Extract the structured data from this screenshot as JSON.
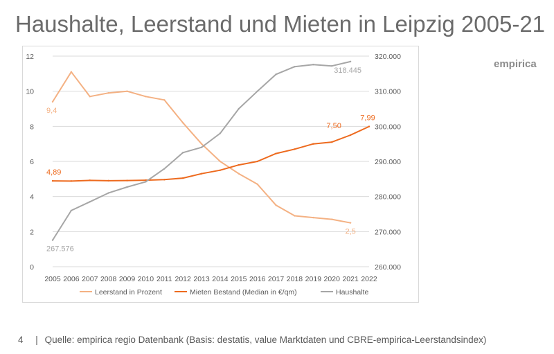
{
  "slide": {
    "title": "Haushalte, Leerstand und Mieten in Leipzig 2005-21",
    "brand": "empirica",
    "page_number": "4",
    "separator": "|",
    "source": "Quelle: empirica regio Datenbank (Basis: destatis, value Marktdaten und CBRE-empirica-Leerstandsindex)"
  },
  "chart_data": {
    "type": "line",
    "title": "Haushalte, Leerstand und Mieten in Leipzig 2005-21",
    "categories": [
      "2005",
      "2006",
      "2007",
      "2008",
      "2009",
      "2010",
      "2011",
      "2012",
      "2013",
      "2014",
      "2015",
      "2016",
      "2017",
      "2018",
      "2019",
      "2020",
      "2021",
      "2022"
    ],
    "y_left": {
      "min": 0,
      "max": 12,
      "ticks": [
        0,
        2,
        4,
        6,
        8,
        10,
        12
      ]
    },
    "y_right": {
      "min": 260000,
      "max": 320000,
      "ticks": [
        260000,
        270000,
        280000,
        290000,
        300000,
        310000,
        320000
      ],
      "tick_labels": [
        "260.000",
        "270.000",
        "280.000",
        "290.000",
        "300.000",
        "310.000",
        "320.000"
      ]
    },
    "grid": true,
    "legend_position": "bottom",
    "series": [
      {
        "name": "Leerstand in Prozent",
        "axis": "left",
        "color": "#f4b183",
        "values": [
          9.4,
          11.1,
          9.7,
          9.9,
          10.0,
          9.7,
          9.5,
          8.2,
          7.0,
          6.0,
          5.3,
          4.7,
          3.5,
          2.9,
          2.8,
          2.7,
          2.5,
          null
        ],
        "labels": [
          {
            "index": 0,
            "text": "9,4",
            "pos": "below"
          },
          {
            "index": 16,
            "text": "2,5",
            "pos": "below"
          }
        ]
      },
      {
        "name": "Mieten Bestand (Median in €/qm)",
        "axis": "left",
        "color": "#ed6a1e",
        "values": [
          4.89,
          4.88,
          4.92,
          4.9,
          4.91,
          4.93,
          4.96,
          5.05,
          5.3,
          5.5,
          5.8,
          6.0,
          6.45,
          6.7,
          7.0,
          7.1,
          7.5,
          7.99
        ],
        "labels": [
          {
            "index": 0,
            "text": "4,89",
            "pos": "above"
          },
          {
            "index": 16,
            "text": "7,50",
            "pos": "above-left"
          },
          {
            "index": 17,
            "text": "7,99",
            "pos": "above"
          }
        ]
      },
      {
        "name": "Haushalte",
        "axis": "right",
        "color": "#a6a6a6",
        "values": [
          267576,
          276000,
          278500,
          281000,
          282700,
          284200,
          287900,
          292500,
          294000,
          298000,
          305000,
          310000,
          314800,
          317000,
          317600,
          317200,
          318445,
          null
        ],
        "labels": [
          {
            "index": 0,
            "text": "267.576",
            "pos": "below"
          },
          {
            "index": 16,
            "text": "318.445",
            "pos": "below"
          }
        ]
      }
    ]
  }
}
